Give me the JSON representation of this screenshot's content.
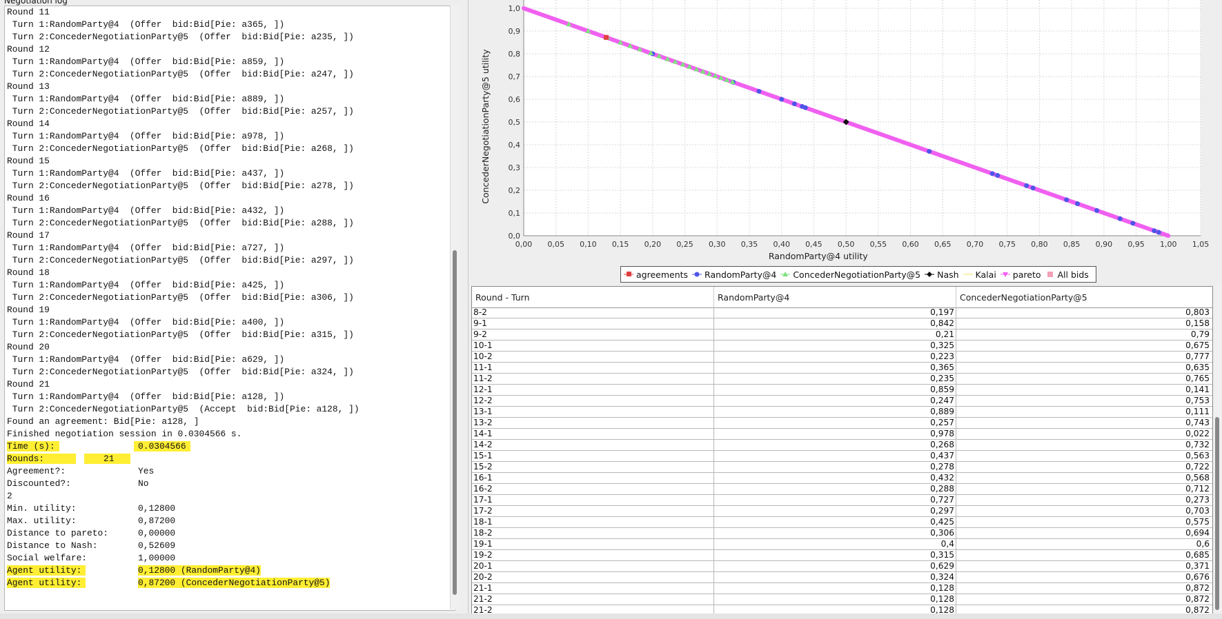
{
  "log": {
    "title": "Negotiation log",
    "lines": [
      "Round 11",
      " Turn 1:RandomParty@4  (Offer  bid:Bid[Pie: a365, ])",
      " Turn 2:ConcederNegotiationParty@5  (Offer  bid:Bid[Pie: a235, ])",
      "Round 12",
      " Turn 1:RandomParty@4  (Offer  bid:Bid[Pie: a859, ])",
      " Turn 2:ConcederNegotiationParty@5  (Offer  bid:Bid[Pie: a247, ])",
      "Round 13",
      " Turn 1:RandomParty@4  (Offer  bid:Bid[Pie: a889, ])",
      " Turn 2:ConcederNegotiationParty@5  (Offer  bid:Bid[Pie: a257, ])",
      "Round 14",
      " Turn 1:RandomParty@4  (Offer  bid:Bid[Pie: a978, ])",
      " Turn 2:ConcederNegotiationParty@5  (Offer  bid:Bid[Pie: a268, ])",
      "Round 15",
      " Turn 1:RandomParty@4  (Offer  bid:Bid[Pie: a437, ])",
      " Turn 2:ConcederNegotiationParty@5  (Offer  bid:Bid[Pie: a278, ])",
      "Round 16",
      " Turn 1:RandomParty@4  (Offer  bid:Bid[Pie: a432, ])",
      " Turn 2:ConcederNegotiationParty@5  (Offer  bid:Bid[Pie: a288, ])",
      "Round 17",
      " Turn 1:RandomParty@4  (Offer  bid:Bid[Pie: a727, ])",
      " Turn 2:ConcederNegotiationParty@5  (Offer  bid:Bid[Pie: a297, ])",
      "Round 18",
      " Turn 1:RandomParty@4  (Offer  bid:Bid[Pie: a425, ])",
      " Turn 2:ConcederNegotiationParty@5  (Offer  bid:Bid[Pie: a306, ])",
      "Round 19",
      " Turn 1:RandomParty@4  (Offer  bid:Bid[Pie: a400, ])",
      " Turn 2:ConcederNegotiationParty@5  (Offer  bid:Bid[Pie: a315, ])",
      "Round 20",
      " Turn 1:RandomParty@4  (Offer  bid:Bid[Pie: a629, ])",
      " Turn 2:ConcederNegotiationParty@5  (Offer  bid:Bid[Pie: a324, ])",
      "Round 21",
      " Turn 1:RandomParty@4  (Offer  bid:Bid[Pie: a128, ])",
      " Turn 2:ConcederNegotiationParty@5  (Accept  bid:Bid[Pie: a128, ])",
      "Found an agreement: Bid[Pie: a128, ]",
      "Finished negotiation session in 0.0304566 s."
    ],
    "stats": [
      {
        "key": "Time (s):",
        "value": "0.0304566",
        "hl_key": true,
        "hl_val": true
      },
      {
        "key": "Rounds:",
        "value": "21",
        "hl_key": true,
        "hl_val": true
      },
      {
        "key": "Agreement?:",
        "value": "Yes"
      },
      {
        "key": "Discounted?:",
        "value": "No"
      },
      {
        "key": "2",
        "value": ""
      },
      {
        "key": "Min. utility:",
        "value": "0,12800"
      },
      {
        "key": "Max. utility:",
        "value": "0,87200"
      },
      {
        "key": "Distance to pareto:",
        "value": "0,00000"
      },
      {
        "key": "Distance to Nash:",
        "value": "0,52609"
      },
      {
        "key": "Social welfare:",
        "value": "1,00000"
      },
      {
        "key": "Agent utility:",
        "value": "0,12800 (RandomParty@4)",
        "hl_key": true,
        "hl_val": true
      },
      {
        "key": "Agent utility:",
        "value": "0,87200 (ConcederNegotiationParty@5)",
        "hl_key": true,
        "hl_val": true
      }
    ]
  },
  "chart_data": {
    "type": "scatter",
    "xlabel": "RandomParty@4 utility",
    "ylabel": "ConcederNegotiationParty@5 utility",
    "xlim": [
      0,
      1.05
    ],
    "ylim": [
      0,
      1.0
    ],
    "x_ticks": [
      "0,00",
      "0,05",
      "0,10",
      "0,15",
      "0,20",
      "0,25",
      "0,30",
      "0,35",
      "0,40",
      "0,45",
      "0,50",
      "0,55",
      "0,60",
      "0,65",
      "0,70",
      "0,75",
      "0,80",
      "0,85",
      "0,90",
      "0,95",
      "1,00",
      "1,05"
    ],
    "y_ticks": [
      "0,0",
      "0,1",
      "0,2",
      "0,3",
      "0,4",
      "0,5",
      "0,6",
      "0,7",
      "0,8",
      "0,9",
      "1,0"
    ],
    "grid": true,
    "legend_position": "bottom",
    "legend": [
      "agreements",
      "RandomParty@4",
      "ConcederNegotiationParty@5",
      "Nash",
      "Kalai",
      "pareto",
      "All bids"
    ],
    "colors": {
      "agreements": "#e04040",
      "RandomParty@4": "#4f55e8",
      "ConcederNegotiationParty@5": "#7fe07f",
      "Nash": "#111111",
      "Kalai": "#f0e060",
      "pareto": "#f060f0",
      "All bids": "#f4a0b8"
    },
    "series": [
      {
        "name": "pareto",
        "x": [
          0.0,
          1.0
        ],
        "y": [
          1.0,
          0.0
        ]
      },
      {
        "name": "RandomParty@4",
        "x": [
          0.2,
          0.325,
          0.365,
          0.4,
          0.42,
          0.432,
          0.437,
          0.629,
          0.727,
          0.735,
          0.78,
          0.79,
          0.842,
          0.859,
          0.889,
          0.925,
          0.945,
          0.978,
          0.985
        ],
        "y": [
          0.8,
          0.675,
          0.635,
          0.6,
          0.58,
          0.568,
          0.563,
          0.371,
          0.273,
          0.265,
          0.22,
          0.21,
          0.158,
          0.141,
          0.111,
          0.075,
          0.055,
          0.022,
          0.015
        ]
      },
      {
        "name": "ConcederNegotiationParty@5",
        "x": [
          0.07,
          0.1,
          0.13,
          0.15,
          0.165,
          0.18,
          0.197,
          0.21,
          0.223,
          0.235,
          0.247,
          0.257,
          0.268,
          0.278,
          0.288,
          0.297,
          0.306,
          0.315,
          0.324
        ],
        "y": [
          0.93,
          0.9,
          0.87,
          0.85,
          0.835,
          0.82,
          0.803,
          0.79,
          0.777,
          0.765,
          0.753,
          0.743,
          0.732,
          0.722,
          0.712,
          0.703,
          0.694,
          0.685,
          0.676
        ]
      },
      {
        "name": "agreements",
        "x": [
          0.128
        ],
        "y": [
          0.872
        ]
      },
      {
        "name": "Nash",
        "x": [
          0.5
        ],
        "y": [
          0.5
        ]
      }
    ]
  },
  "table": {
    "headers": [
      "Round - Turn",
      "RandomParty@4",
      "ConcederNegotiationParty@5"
    ],
    "rows": [
      [
        "8-2",
        "0,197",
        "0,803"
      ],
      [
        "9-1",
        "0,842",
        "0,158"
      ],
      [
        "9-2",
        "0,21",
        "0,79"
      ],
      [
        "10-1",
        "0,325",
        "0,675"
      ],
      [
        "10-2",
        "0,223",
        "0,777"
      ],
      [
        "11-1",
        "0,365",
        "0,635"
      ],
      [
        "11-2",
        "0,235",
        "0,765"
      ],
      [
        "12-1",
        "0,859",
        "0,141"
      ],
      [
        "12-2",
        "0,247",
        "0,753"
      ],
      [
        "13-1",
        "0,889",
        "0,111"
      ],
      [
        "13-2",
        "0,257",
        "0,743"
      ],
      [
        "14-1",
        "0,978",
        "0,022"
      ],
      [
        "14-2",
        "0,268",
        "0,732"
      ],
      [
        "15-1",
        "0,437",
        "0,563"
      ],
      [
        "15-2",
        "0,278",
        "0,722"
      ],
      [
        "16-1",
        "0,432",
        "0,568"
      ],
      [
        "16-2",
        "0,288",
        "0,712"
      ],
      [
        "17-1",
        "0,727",
        "0,273"
      ],
      [
        "17-2",
        "0,297",
        "0,703"
      ],
      [
        "18-1",
        "0,425",
        "0,575"
      ],
      [
        "18-2",
        "0,306",
        "0,694"
      ],
      [
        "19-1",
        "0,4",
        "0,6"
      ],
      [
        "19-2",
        "0,315",
        "0,685"
      ],
      [
        "20-1",
        "0,629",
        "0,371"
      ],
      [
        "20-2",
        "0,324",
        "0,676"
      ],
      [
        "21-1",
        "0,128",
        "0,872"
      ],
      [
        "21-2",
        "0,128",
        "0,872"
      ],
      [
        "21-2",
        "0,128",
        "0,872"
      ]
    ]
  }
}
